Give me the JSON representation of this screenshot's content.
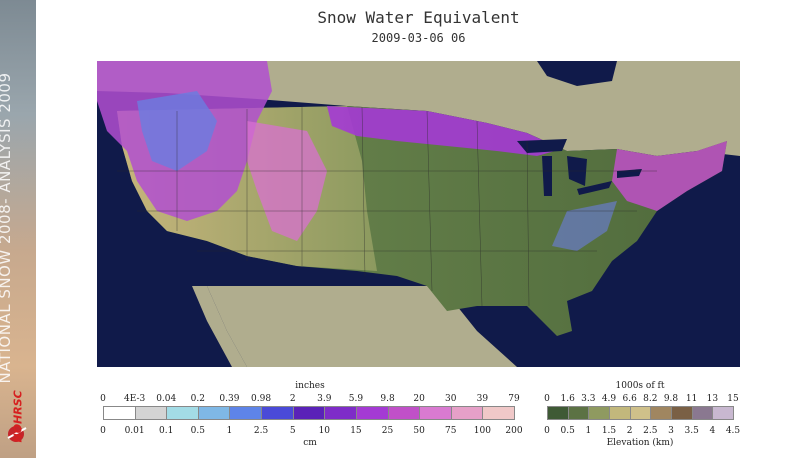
{
  "header": {
    "title": "Snow Water Equivalent",
    "timestamp": "2009-03-06 06"
  },
  "sidebar": {
    "banner": "NATIONAL SNOW 2008- ANALYSIS 2009",
    "logo_text": "NOHRSC"
  },
  "swe_legend": {
    "top_unit": "inches",
    "bottom_unit": "cm",
    "inch_ticks": [
      "0",
      "4E-3",
      "0.04",
      "0.2",
      "0.39",
      "0.98",
      "2",
      "3.9",
      "5.9",
      "9.8",
      "20",
      "30",
      "39",
      "79"
    ],
    "cm_ticks": [
      "0",
      "0.01",
      "0.1",
      "0.5",
      "1",
      "2.5",
      "5",
      "10",
      "15",
      "25",
      "50",
      "75",
      "100",
      "200"
    ],
    "colors": [
      "#ffffff",
      "#d4d4d4",
      "#a3dce6",
      "#7fb8e6",
      "#5e84e8",
      "#4a4ad8",
      "#5a22b8",
      "#7e2cc8",
      "#a43ad4",
      "#c050c8",
      "#d97ad1",
      "#e6a0c8",
      "#f0c8c8"
    ]
  },
  "elevation_legend": {
    "top_unit": "1000s of ft",
    "bottom_label": "Elevation (km)",
    "ft_ticks": [
      "0",
      "1.6",
      "3.3",
      "4.9",
      "6.6",
      "8.2",
      "9.8",
      "11",
      "13",
      "15"
    ],
    "km_ticks": [
      "0",
      "0.5",
      "1",
      "1.5",
      "2",
      "2.5",
      "3",
      "3.5",
      "4",
      "4.5"
    ],
    "colors": [
      "#3f5a35",
      "#5c7244",
      "#8f9a60",
      "#c2b87c",
      "#cfc08a",
      "#a08660",
      "#7a6045",
      "#8a7890",
      "#c8b8d0"
    ]
  },
  "map": {
    "ocean_color": "#101a4a",
    "canada_color": "#b0ad8e",
    "mexico_color": "#b0ad8e"
  }
}
